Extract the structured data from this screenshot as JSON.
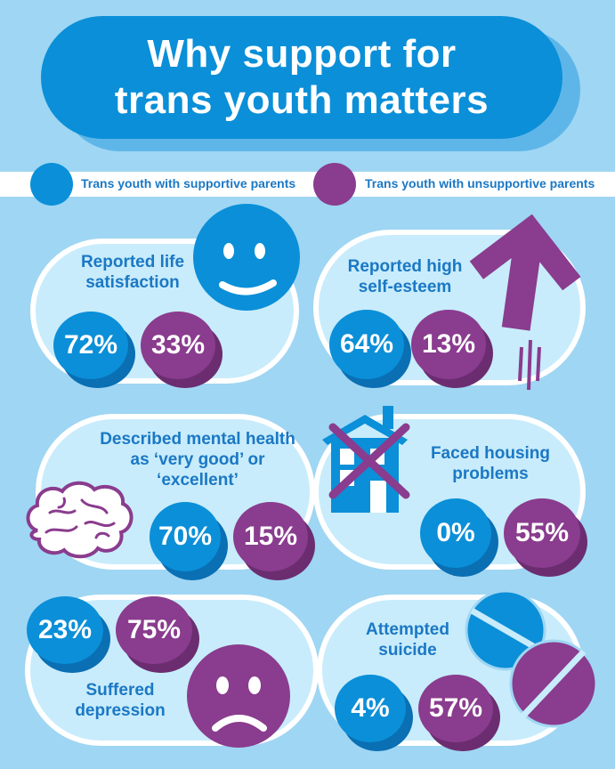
{
  "title": {
    "line1": "Why support for",
    "line2": "trans youth matters"
  },
  "legend": {
    "supportive": "Trans youth with supportive parents",
    "unsupportive": "Trans youth with unsupportive parents"
  },
  "colors": {
    "supportive": "#0b8fd8",
    "unsupportive": "#8a3c8e",
    "background": "#9fd6f3"
  },
  "stats": {
    "life_satisfaction": {
      "label": "Reported life satisfaction",
      "supportive": "72%",
      "unsupportive": "33%",
      "icon": "smiley-icon"
    },
    "self_esteem": {
      "label": "Reported high self-esteem",
      "supportive": "64%",
      "unsupportive": "13%",
      "icon": "up-arrow-icon"
    },
    "mental_health": {
      "label": "Described mental health as ‘very good’ or ‘excellent’",
      "supportive": "70%",
      "unsupportive": "15%",
      "icon": "brain-icon"
    },
    "housing": {
      "label": "Faced housing problems",
      "supportive": "0%",
      "unsupportive": "55%",
      "icon": "crossed-house-icon"
    },
    "depression": {
      "label": "Suffered depression",
      "supportive": "23%",
      "unsupportive": "75%",
      "icon": "sad-face-icon"
    },
    "suicide": {
      "label": "Attempted suicide",
      "supportive": "4%",
      "unsupportive": "57%",
      "icon": "pills-icon"
    }
  }
}
